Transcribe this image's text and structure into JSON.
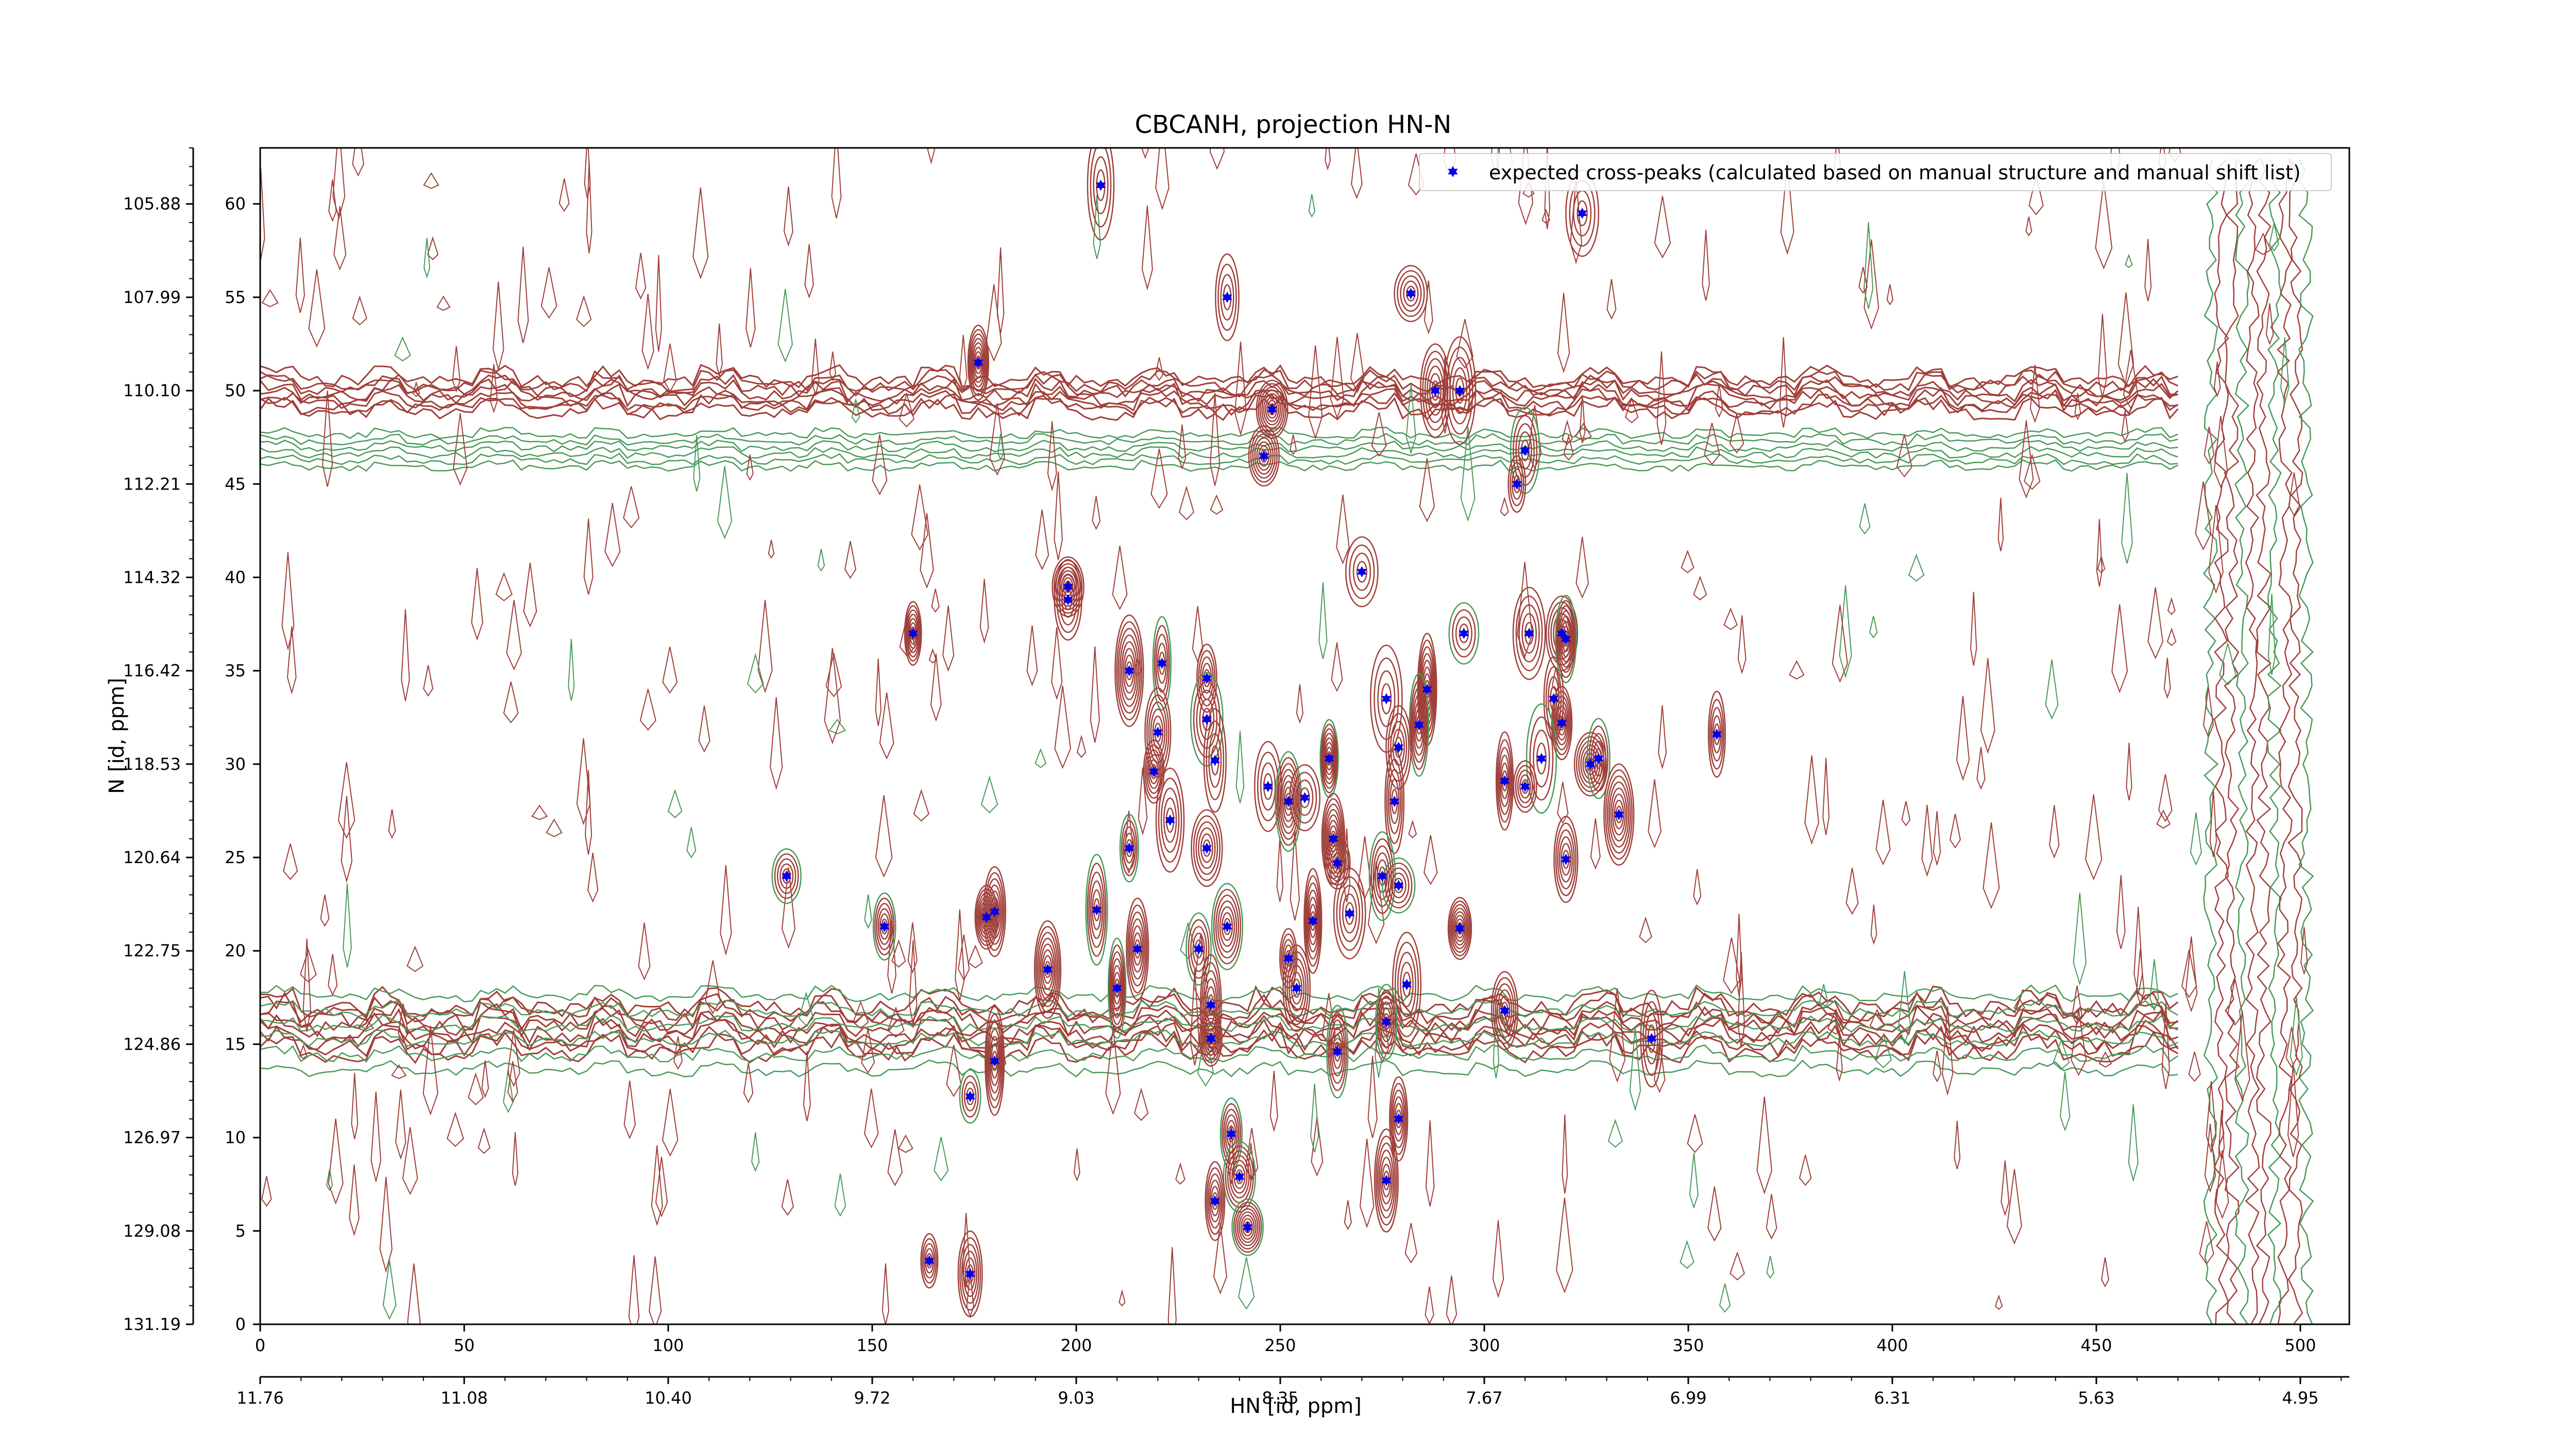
{
  "chart_data": {
    "type": "scatter",
    "title": "CBCANH, projection HN-N",
    "xlabel": "HN [id, ppm]",
    "ylabel": "N [id, ppm]",
    "xlim": [
      0,
      512
    ],
    "ylim": [
      0,
      63
    ],
    "x_ticks": [
      0,
      50,
      100,
      150,
      200,
      250,
      300,
      350,
      400,
      450,
      500
    ],
    "y_ticks": [
      0,
      5,
      10,
      15,
      20,
      25,
      30,
      35,
      40,
      45,
      50,
      55,
      60
    ],
    "x_ppm_ticks": [
      "11.76",
      "11.08",
      "10.40",
      "9.72",
      "9.03",
      "8.35",
      "7.67",
      "6.99",
      "6.31",
      "5.63",
      "4.95"
    ],
    "y_ppm_ticks": [
      "131.19",
      "129.08",
      "126.97",
      "124.86",
      "122.75",
      "120.64",
      "118.53",
      "116.42",
      "114.32",
      "112.21",
      "110.10",
      "107.99",
      "105.88"
    ],
    "legend": {
      "entries": [
        "expected cross-peaks (calculated based on manual structure and manual shift list)"
      ],
      "location": "upper right"
    },
    "colors": {
      "positive_contour": "#a0403a",
      "negative_contour": "#4a9a5a",
      "peak_marker": "#0000ee"
    },
    "series": [
      {
        "name": "expected cross-peaks (calculated based on manual structure and manual shift list)",
        "points": [
          [
            206,
            61
          ],
          [
            324,
            59.5
          ],
          [
            237,
            55
          ],
          [
            282,
            55.2
          ],
          [
            176,
            51.5
          ],
          [
            288,
            50
          ],
          [
            294,
            50
          ],
          [
            248,
            49
          ],
          [
            246,
            46.5
          ],
          [
            310,
            46.8
          ],
          [
            308,
            45
          ],
          [
            270,
            40.3
          ],
          [
            198,
            39.5
          ],
          [
            198,
            38.8
          ],
          [
            160,
            37
          ],
          [
            295,
            37
          ],
          [
            311,
            37
          ],
          [
            319,
            37
          ],
          [
            320,
            36.7
          ],
          [
            213,
            35
          ],
          [
            221,
            35.4
          ],
          [
            232,
            34.6
          ],
          [
            276,
            33.5
          ],
          [
            286,
            34
          ],
          [
            317,
            33.5
          ],
          [
            220,
            31.7
          ],
          [
            232,
            32.4
          ],
          [
            284,
            32.1
          ],
          [
            319,
            32.2
          ],
          [
            357,
            31.6
          ],
          [
            279,
            30.9
          ],
          [
            234,
            30.2
          ],
          [
            262,
            30.3
          ],
          [
            314,
            30.3
          ],
          [
            326,
            30
          ],
          [
            328,
            30.3
          ],
          [
            219,
            29.6
          ],
          [
            305,
            29.1
          ],
          [
            310,
            28.8
          ],
          [
            247,
            28.8
          ],
          [
            252,
            28
          ],
          [
            256,
            28.2
          ],
          [
            278,
            28
          ],
          [
            223,
            27
          ],
          [
            333,
            27.3
          ],
          [
            263,
            26
          ],
          [
            213,
            25.5
          ],
          [
            232,
            25.5
          ],
          [
            264,
            24.7
          ],
          [
            320,
            24.9
          ],
          [
            129,
            24
          ],
          [
            275,
            24
          ],
          [
            279,
            23.5
          ],
          [
            205,
            22.2
          ],
          [
            267,
            22
          ],
          [
            180,
            22.1
          ],
          [
            178,
            21.8
          ],
          [
            258,
            21.6
          ],
          [
            237,
            21.3
          ],
          [
            153,
            21.3
          ],
          [
            294,
            21.2
          ],
          [
            215,
            20.1
          ],
          [
            230,
            20.1
          ],
          [
            252,
            19.6
          ],
          [
            193,
            19
          ],
          [
            210,
            18
          ],
          [
            254,
            18
          ],
          [
            281,
            18.2
          ],
          [
            233,
            17.1
          ],
          [
            305,
            16.8
          ],
          [
            276,
            16.2
          ],
          [
            233,
            15.3
          ],
          [
            341,
            15.3
          ],
          [
            264,
            14.6
          ],
          [
            180,
            14.1
          ],
          [
            174,
            12.2
          ],
          [
            279,
            11
          ],
          [
            238,
            10.2
          ],
          [
            276,
            7.7
          ],
          [
            240,
            7.9
          ],
          [
            234,
            6.6
          ],
          [
            242,
            5.2
          ],
          [
            164,
            3.4
          ],
          [
            174,
            2.7
          ]
        ]
      }
    ]
  }
}
